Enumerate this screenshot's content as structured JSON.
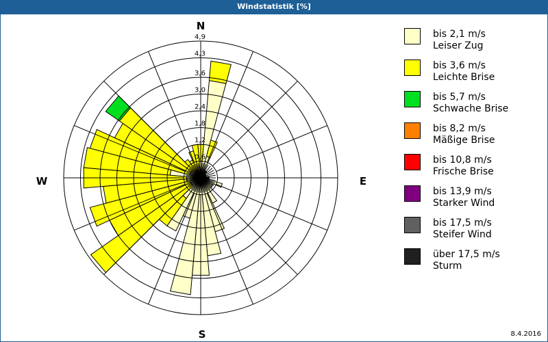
{
  "window": {
    "title": "Windstatistik [%]",
    "date": "8.4.2016"
  },
  "compass": {
    "N": "N",
    "E": "E",
    "S": "S",
    "W": "W"
  },
  "legend": [
    {
      "range": "bis 2,1 m/s",
      "name": "Leiser Zug",
      "color": "#ffffc8"
    },
    {
      "range": "bis 3,6 m/s",
      "name": "Leichte Brise",
      "color": "#ffff00"
    },
    {
      "range": "bis 5,7 m/s",
      "name": "Schwache Brise",
      "color": "#00e020"
    },
    {
      "range": "bis 8,2 m/s",
      "name": "Mäßige Brise",
      "color": "#ff8000"
    },
    {
      "range": "bis 10,8 m/s",
      "name": "Frische Brise",
      "color": "#ff0000"
    },
    {
      "range": "bis 13,9 m/s",
      "name": "Starker Wind",
      "color": "#800080"
    },
    {
      "range": "bis 17,5 m/s",
      "name": "Steifer Wind",
      "color": "#606060"
    },
    {
      "range": "über 17,5 m/s",
      "name": "Sturm",
      "color": "#202020"
    }
  ],
  "chart_data": {
    "type": "wind-rose (polar stacked bar)",
    "title": "Windstatistik [%]",
    "unit": "%",
    "radial_ticks": [
      "0,6",
      "1,2",
      "1,8",
      "2,4",
      "3,0",
      "3,6",
      "4,3",
      "4,9"
    ],
    "radial_max": 4.9,
    "sector_width_deg": 10,
    "series_names": [
      "Leiser Zug",
      "Leichte Brise",
      "Schwache Brise"
    ],
    "sectors": [
      {
        "dir": 0,
        "segments": [
          0.6,
          0.6
        ]
      },
      {
        "dir": 10,
        "segments": [
          3.5,
          0.7
        ]
      },
      {
        "dir": 20,
        "segments": [
          0.8,
          0.6
        ]
      },
      {
        "dir": 30,
        "segments": [
          0.3,
          0
        ]
      },
      {
        "dir": 40,
        "segments": [
          0.3,
          0
        ]
      },
      {
        "dir": 50,
        "segments": [
          0.2,
          0
        ]
      },
      {
        "dir": 60,
        "segments": [
          0.2,
          0
        ]
      },
      {
        "dir": 70,
        "segments": [
          0.2,
          0
        ]
      },
      {
        "dir": 80,
        "segments": [
          0.2,
          0
        ]
      },
      {
        "dir": 90,
        "segments": [
          0.3,
          0
        ]
      },
      {
        "dir": 100,
        "segments": [
          0.3,
          0
        ]
      },
      {
        "dir": 110,
        "segments": [
          0.8,
          0
        ]
      },
      {
        "dir": 120,
        "segments": [
          0.5,
          0
        ]
      },
      {
        "dir": 130,
        "segments": [
          0.5,
          0
        ]
      },
      {
        "dir": 140,
        "segments": [
          0.6,
          0
        ]
      },
      {
        "dir": 150,
        "segments": [
          1.0,
          0
        ]
      },
      {
        "dir": 160,
        "segments": [
          2.0,
          0
        ]
      },
      {
        "dir": 170,
        "segments": [
          2.8,
          0
        ]
      },
      {
        "dir": 180,
        "segments": [
          3.5,
          0
        ]
      },
      {
        "dir": 190,
        "segments": [
          4.2,
          0
        ]
      },
      {
        "dir": 200,
        "segments": [
          1.5,
          0
        ]
      },
      {
        "dir": 210,
        "segments": [
          2.1,
          0
        ]
      },
      {
        "dir": 220,
        "segments": [
          0.9,
          1.2
        ]
      },
      {
        "dir": 230,
        "segments": [
          0.4,
          4.4
        ]
      },
      {
        "dir": 240,
        "segments": [
          0.4,
          3.2
        ]
      },
      {
        "dir": 250,
        "segments": [
          0.4,
          3.7
        ]
      },
      {
        "dir": 260,
        "segments": [
          0.5,
          3.0
        ]
      },
      {
        "dir": 270,
        "segments": [
          0.5,
          3.7
        ]
      },
      {
        "dir": 280,
        "segments": [
          1.1,
          3.1
        ]
      },
      {
        "dir": 290,
        "segments": [
          0.4,
          3.7
        ]
      },
      {
        "dir": 300,
        "segments": [
          0.4,
          3.0
        ]
      },
      {
        "dir": 310,
        "segments": [
          0.4,
          3.15,
          0.6
        ]
      },
      {
        "dir": 320,
        "segments": [
          0.3,
          0.5
        ]
      },
      {
        "dir": 330,
        "segments": [
          0.3,
          0.4
        ]
      },
      {
        "dir": 340,
        "segments": [
          0.3,
          0.7
        ]
      },
      {
        "dir": 350,
        "segments": [
          0.4,
          0.8
        ]
      }
    ]
  }
}
